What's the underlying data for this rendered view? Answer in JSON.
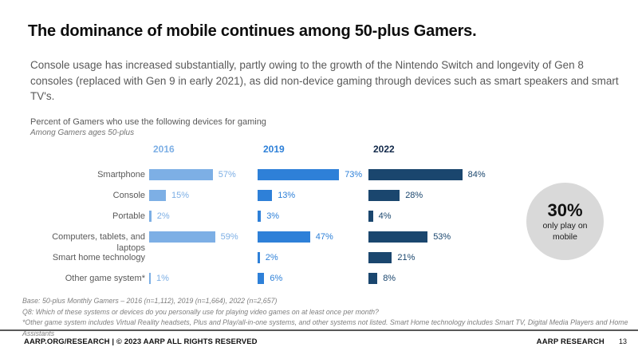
{
  "slide": {
    "title": "The dominance of mobile continues among 50-plus Gamers.",
    "paragraph": "Console usage has increased substantially, partly owing to the growth of the Nintendo Switch and longevity of Gen 8 consoles (replaced with Gen 9 in early 2021), as did non-device gaming through devices such as smart speakers and smart TV's."
  },
  "chart_heading": {
    "line1": "Percent of Gamers who use the following devices for gaming",
    "line2": "Among Gamers ages 50-plus"
  },
  "chart_data": {
    "type": "bar",
    "orientation": "horizontal",
    "title": "Percent of Gamers who use the following devices for gaming",
    "subtitle": "Among Gamers ages 50-plus",
    "categories": [
      "Smartphone",
      "Console",
      "Portable",
      "Computers, tablets, and laptops",
      "Smart home technology",
      "Other game system*"
    ],
    "series": [
      {
        "name": "2016",
        "color": "#7dafe5",
        "header_color": "#7dafe5",
        "values": [
          57,
          15,
          2,
          59,
          null,
          1
        ]
      },
      {
        "name": "2019",
        "color": "#2e80d8",
        "header_color": "#2e80d8",
        "values": [
          73,
          13,
          3,
          47,
          2,
          6
        ]
      },
      {
        "name": "2022",
        "color": "#1a466e",
        "header_color": "#12294a",
        "values": [
          84,
          28,
          4,
          53,
          21,
          8
        ]
      }
    ],
    "value_suffix": "%",
    "xlim": [
      0,
      100
    ],
    "legend_position": "column headers above bars",
    "grid": false
  },
  "annotation_circle": {
    "value": "30%",
    "label": "only play on mobile",
    "bg_color": "#d9d9d9"
  },
  "footnotes": [
    "Base: 50-plus Monthly Gamers – 2016 (n=1,112), 2019 (n=1,664), 2022 (n=2,657)",
    "Q8: Which of these systems or devices do you personally use for playing video games on at least once per month?",
    "*Other game system includes Virtual Reality headsets, Plus and Play/all-in-one systems, and other systems not listed. Smart Home technology includes Smart TV, Digital Media Players and Home Assistants"
  ],
  "footer": {
    "left_brand": "AARP.ORG/RESEARCH",
    "left_rest": " | © 2023 AARP ALL RIGHTS RESERVED",
    "right_brand": "AARP RESEARCH",
    "page_number": "13"
  },
  "layout_colors": {
    "text_gray": "#595959",
    "footnote_gray": "#7f7f7f"
  }
}
